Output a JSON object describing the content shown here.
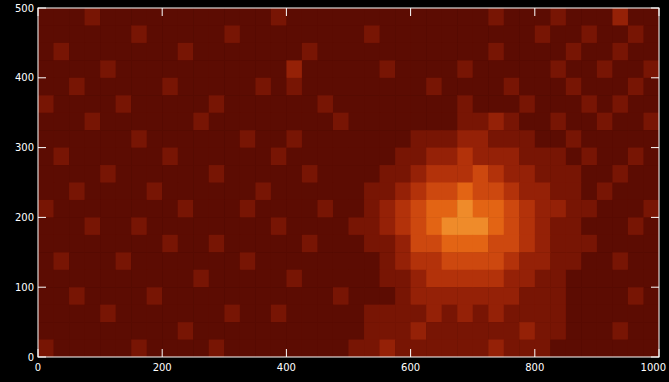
{
  "chart_data": {
    "type": "heatmap",
    "xlim": [
      0,
      1000
    ],
    "xticks": [
      0,
      200,
      400,
      600,
      800,
      1000
    ],
    "ylim": [
      0,
      500
    ],
    "yticks": [
      0,
      100,
      200,
      300,
      400,
      500
    ],
    "zlim": [
      0,
      9
    ],
    "cells": [
      [
        1,
        1,
        1,
        2,
        1,
        1,
        1,
        1,
        1,
        1,
        1,
        1,
        1,
        1,
        1,
        2,
        1,
        1,
        1,
        1,
        1,
        1,
        1,
        1,
        1,
        1,
        1,
        1,
        1,
        2,
        1,
        1,
        1,
        2,
        1,
        1,
        1,
        3,
        1,
        1
      ],
      [
        1,
        1,
        1,
        1,
        1,
        1,
        2,
        1,
        1,
        1,
        1,
        1,
        2,
        1,
        1,
        1,
        1,
        1,
        1,
        1,
        1,
        2,
        1,
        1,
        1,
        1,
        1,
        1,
        1,
        1,
        1,
        1,
        2,
        1,
        1,
        2,
        1,
        1,
        2,
        1
      ],
      [
        1,
        2,
        1,
        1,
        1,
        1,
        1,
        1,
        1,
        2,
        1,
        1,
        1,
        1,
        1,
        1,
        1,
        2,
        1,
        1,
        1,
        1,
        1,
        1,
        1,
        1,
        1,
        1,
        1,
        2,
        1,
        1,
        1,
        1,
        2,
        1,
        1,
        2,
        1,
        1
      ],
      [
        1,
        1,
        1,
        1,
        2,
        1,
        1,
        1,
        1,
        1,
        1,
        1,
        1,
        1,
        1,
        1,
        3,
        1,
        1,
        1,
        1,
        1,
        2,
        1,
        1,
        1,
        1,
        2,
        1,
        1,
        1,
        1,
        1,
        2,
        1,
        1,
        2,
        1,
        1,
        2
      ],
      [
        1,
        1,
        2,
        1,
        1,
        1,
        1,
        1,
        2,
        1,
        1,
        1,
        1,
        1,
        2,
        1,
        2,
        1,
        1,
        1,
        1,
        1,
        1,
        1,
        1,
        2,
        1,
        1,
        1,
        1,
        2,
        1,
        1,
        1,
        2,
        1,
        1,
        1,
        2,
        1
      ],
      [
        2,
        1,
        1,
        1,
        1,
        2,
        1,
        1,
        1,
        1,
        1,
        2,
        1,
        1,
        1,
        1,
        1,
        1,
        2,
        1,
        1,
        1,
        1,
        1,
        1,
        1,
        1,
        2,
        1,
        1,
        1,
        2,
        1,
        1,
        1,
        2,
        1,
        2,
        1,
        1
      ],
      [
        1,
        1,
        1,
        2,
        1,
        1,
        1,
        1,
        1,
        1,
        2,
        1,
        1,
        1,
        1,
        1,
        1,
        1,
        1,
        2,
        1,
        1,
        1,
        1,
        1,
        1,
        1,
        2,
        2,
        3,
        2,
        1,
        1,
        2,
        1,
        1,
        2,
        1,
        1,
        2
      ],
      [
        1,
        1,
        1,
        1,
        1,
        1,
        2,
        1,
        1,
        1,
        1,
        1,
        1,
        2,
        1,
        1,
        2,
        1,
        1,
        1,
        1,
        1,
        1,
        1,
        2,
        2,
        2,
        3,
        3,
        2,
        2,
        2,
        1,
        1,
        2,
        1,
        1,
        1,
        1,
        1
      ],
      [
        1,
        2,
        1,
        1,
        1,
        1,
        1,
        1,
        2,
        1,
        1,
        1,
        1,
        1,
        1,
        2,
        1,
        1,
        1,
        1,
        1,
        1,
        1,
        2,
        2,
        3,
        3,
        4,
        3,
        3,
        3,
        2,
        2,
        2,
        1,
        2,
        1,
        1,
        2,
        1
      ],
      [
        1,
        1,
        1,
        1,
        2,
        1,
        1,
        1,
        1,
        1,
        1,
        2,
        1,
        1,
        1,
        1,
        1,
        2,
        1,
        1,
        1,
        1,
        2,
        2,
        3,
        4,
        4,
        4,
        5,
        4,
        3,
        3,
        2,
        2,
        2,
        1,
        1,
        2,
        1,
        1
      ],
      [
        1,
        1,
        2,
        1,
        1,
        1,
        1,
        2,
        1,
        1,
        1,
        1,
        1,
        1,
        2,
        1,
        1,
        1,
        1,
        1,
        1,
        2,
        2,
        3,
        4,
        5,
        5,
        6,
        5,
        5,
        4,
        3,
        3,
        2,
        2,
        1,
        2,
        1,
        1,
        1
      ],
      [
        2,
        1,
        1,
        1,
        1,
        1,
        1,
        1,
        1,
        2,
        1,
        1,
        1,
        2,
        1,
        1,
        1,
        1,
        2,
        1,
        1,
        2,
        3,
        4,
        5,
        6,
        6,
        7,
        6,
        6,
        5,
        4,
        3,
        3,
        2,
        2,
        1,
        1,
        1,
        2
      ],
      [
        1,
        1,
        1,
        2,
        1,
        1,
        2,
        1,
        1,
        1,
        1,
        1,
        1,
        1,
        1,
        2,
        1,
        1,
        1,
        1,
        2,
        2,
        3,
        4,
        5,
        6,
        7,
        7,
        7,
        6,
        5,
        4,
        3,
        2,
        2,
        1,
        1,
        1,
        2,
        1
      ],
      [
        1,
        1,
        1,
        1,
        1,
        1,
        1,
        1,
        2,
        1,
        1,
        2,
        1,
        1,
        1,
        1,
        1,
        2,
        1,
        1,
        1,
        2,
        2,
        3,
        5,
        5,
        6,
        6,
        6,
        5,
        5,
        4,
        3,
        2,
        2,
        2,
        1,
        1,
        1,
        1
      ],
      [
        1,
        2,
        1,
        1,
        1,
        2,
        1,
        1,
        1,
        1,
        1,
        1,
        1,
        2,
        1,
        1,
        1,
        1,
        1,
        1,
        1,
        1,
        2,
        3,
        4,
        4,
        5,
        5,
        5,
        5,
        4,
        3,
        3,
        2,
        2,
        1,
        1,
        2,
        1,
        1
      ],
      [
        1,
        1,
        1,
        1,
        1,
        1,
        1,
        1,
        1,
        1,
        2,
        1,
        1,
        1,
        1,
        1,
        2,
        1,
        1,
        1,
        1,
        1,
        2,
        2,
        3,
        4,
        4,
        4,
        4,
        4,
        3,
        3,
        2,
        2,
        1,
        1,
        1,
        1,
        1,
        1
      ],
      [
        1,
        1,
        2,
        1,
        1,
        1,
        1,
        2,
        1,
        1,
        1,
        1,
        1,
        1,
        1,
        1,
        1,
        1,
        1,
        2,
        1,
        1,
        1,
        2,
        3,
        3,
        3,
        3,
        3,
        3,
        3,
        2,
        2,
        2,
        1,
        1,
        1,
        1,
        2,
        1
      ],
      [
        1,
        1,
        1,
        1,
        2,
        1,
        1,
        1,
        1,
        1,
        1,
        1,
        2,
        1,
        1,
        2,
        1,
        1,
        1,
        1,
        1,
        2,
        2,
        2,
        2,
        3,
        2,
        3,
        2,
        3,
        2,
        2,
        2,
        2,
        1,
        1,
        1,
        1,
        1,
        1
      ],
      [
        1,
        1,
        1,
        1,
        1,
        1,
        1,
        1,
        1,
        2,
        1,
        1,
        1,
        1,
        1,
        1,
        1,
        1,
        1,
        1,
        1,
        2,
        2,
        2,
        3,
        2,
        2,
        2,
        2,
        2,
        2,
        3,
        2,
        2,
        1,
        1,
        1,
        2,
        1,
        1
      ],
      [
        2,
        1,
        1,
        1,
        1,
        1,
        2,
        1,
        1,
        1,
        1,
        2,
        1,
        1,
        1,
        1,
        1,
        1,
        1,
        1,
        2,
        2,
        3,
        2,
        2,
        2,
        2,
        2,
        2,
        3,
        2,
        2,
        2,
        1,
        1,
        1,
        1,
        1,
        1,
        1
      ]
    ]
  }
}
